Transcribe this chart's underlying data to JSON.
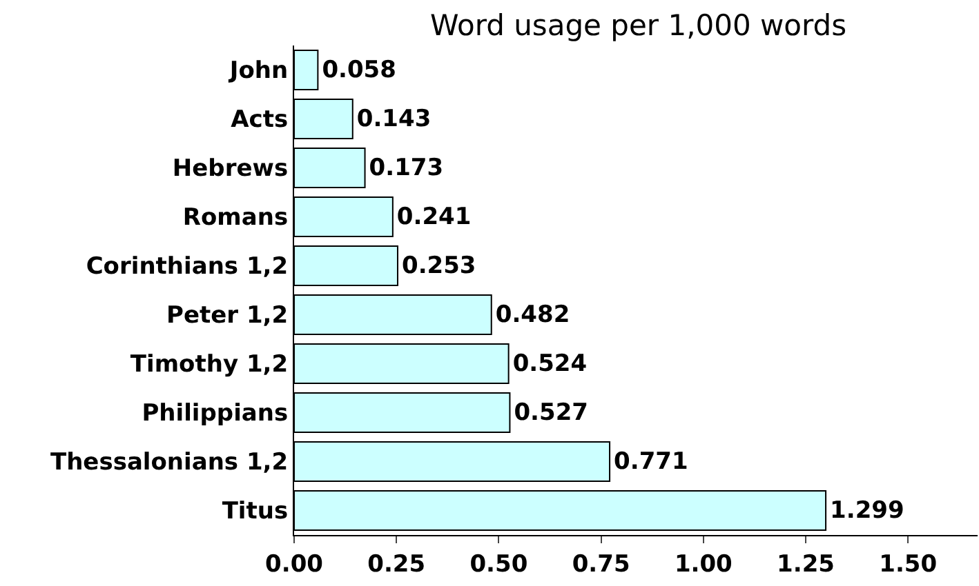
{
  "chart_data": {
    "type": "bar",
    "orientation": "horizontal",
    "title": "Word usage per 1,000 words",
    "categories": [
      "John",
      "Acts",
      "Hebrews",
      "Romans",
      "Corinthians 1,2",
      "Peter 1,2",
      "Timothy 1,2",
      "Philippians",
      "Thessalonians 1,2",
      "Titus"
    ],
    "values": [
      0.058,
      0.143,
      0.173,
      0.241,
      0.253,
      0.482,
      0.524,
      0.527,
      0.771,
      1.299
    ],
    "color": "#ccffff",
    "xlim": [
      0,
      1.67
    ],
    "xticks": [
      {
        "value": 0,
        "label": "0.00"
      },
      {
        "value": 0.25,
        "label": "0.25"
      },
      {
        "value": 0.5,
        "label": "0.50"
      },
      {
        "value": 0.75,
        "label": "0.75"
      },
      {
        "value": 1,
        "label": "1.00"
      },
      {
        "value": 1.25,
        "label": "1.25"
      },
      {
        "value": 1.5,
        "label": "1.50"
      }
    ],
    "data_labels": true
  }
}
